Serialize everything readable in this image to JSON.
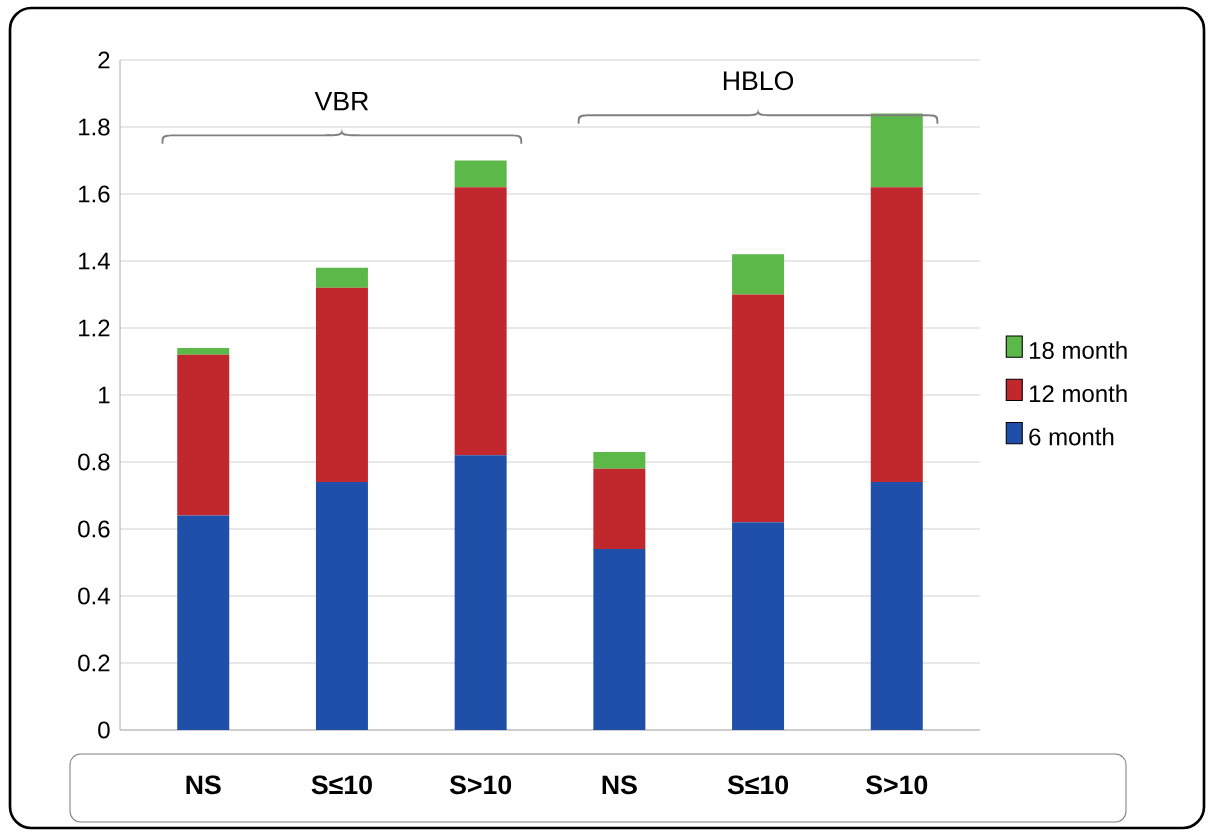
{
  "chart_data": {
    "type": "bar",
    "stacked": true,
    "categories": [
      "NS",
      "S≤10",
      "S>10",
      "NS",
      "S≤10",
      "S>10"
    ],
    "series": [
      {
        "name": "6 month",
        "color": "#1f4fa8",
        "values": [
          0.64,
          0.74,
          0.82,
          0.54,
          0.62,
          0.74
        ]
      },
      {
        "name": "12 month",
        "color": "#c0282d",
        "values": [
          0.48,
          0.58,
          0.8,
          0.24,
          0.68,
          0.88
        ]
      },
      {
        "name": "18 month",
        "color": "#5cb848",
        "values": [
          0.02,
          0.06,
          0.08,
          0.05,
          0.12,
          0.22
        ]
      }
    ],
    "annotations": [
      "VBR",
      "HBLO"
    ],
    "ylim": [
      0,
      2
    ],
    "yticks": [
      0,
      0.2,
      0.4,
      0.6,
      0.8,
      1,
      1.2,
      1.4,
      1.6,
      1.8,
      2
    ],
    "grid": "y",
    "legend": "right"
  }
}
